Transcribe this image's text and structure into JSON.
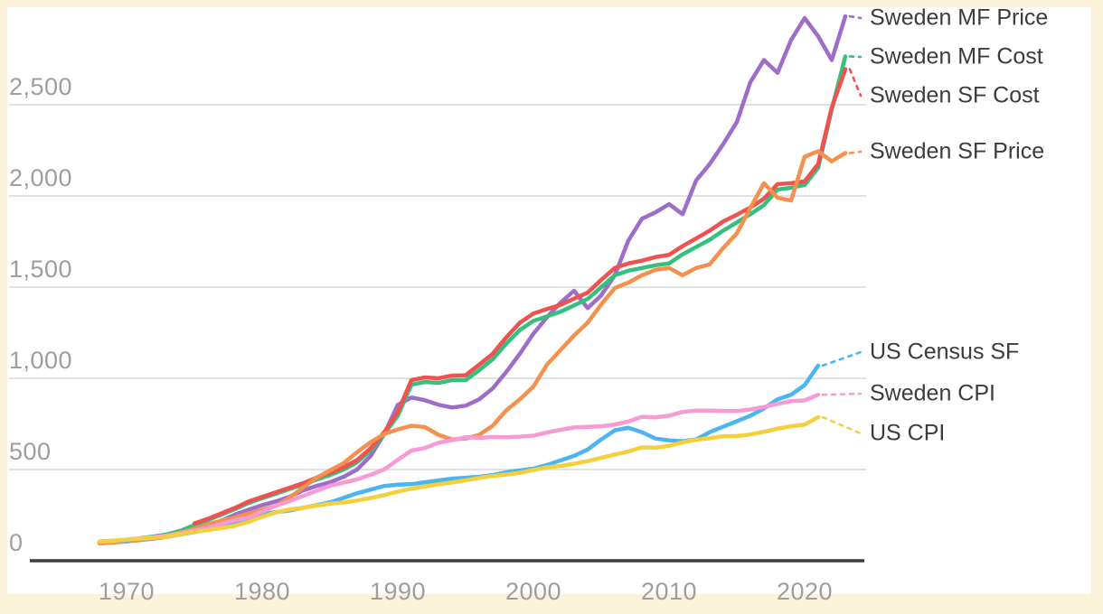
{
  "palette": {
    "page_background": "#FAF3D9",
    "plot_background": "#FFFFFF",
    "gridline": "#E1E1E1",
    "axis_line": "#3E3E3E",
    "tick_text": "#9E9E9E",
    "label_text": "#3C3C3C"
  },
  "chart_data": {
    "type": "line",
    "title": "",
    "grid": true,
    "legend_position": "right of line ends, connected by dashed leader lines",
    "x_axis": {
      "ticks": [
        "1970",
        "1980",
        "1990",
        "2000",
        "2010",
        "2020"
      ],
      "tick_values": [
        1970,
        1980,
        1990,
        2000,
        2010,
        2020
      ],
      "range": [
        1963,
        2025
      ]
    },
    "y_axis": {
      "ticks": [
        "0",
        "500",
        "1,000",
        "1,500",
        "2,000",
        "2,500"
      ],
      "tick_values": [
        0,
        500,
        1000,
        1500,
        2000,
        2500
      ],
      "range": [
        0,
        3100
      ]
    },
    "series": [
      {
        "name": "Sweden MF Price",
        "color": "#9E6DC8",
        "start_year": 1968,
        "end_year": 2023,
        "values": [
          95,
          98,
          102,
          108,
          116,
          126,
          140,
          158,
          185,
          215,
          248,
          275,
          300,
          320,
          345,
          380,
          405,
          425,
          455,
          495,
          570,
          690,
          850,
          890,
          875,
          850,
          835,
          845,
          880,
          940,
          1030,
          1130,
          1240,
          1330,
          1410,
          1475,
          1380,
          1450,
          1560,
          1750,
          1870,
          1905,
          1950,
          1895,
          2080,
          2170,
          2280,
          2400,
          2620,
          2740,
          2670,
          2850,
          2970,
          2870,
          2740,
          2980
        ]
      },
      {
        "name": "Sweden MF Cost",
        "color": "#35C07E",
        "start_year": 1968,
        "end_year": 2023,
        "values": [
          95,
          100,
          108,
          118,
          128,
          140,
          160,
          190,
          218,
          248,
          278,
          312,
          338,
          362,
          388,
          412,
          440,
          465,
          495,
          535,
          600,
          690,
          790,
          960,
          975,
          970,
          985,
          985,
          1040,
          1100,
          1185,
          1260,
          1310,
          1335,
          1360,
          1395,
          1430,
          1495,
          1560,
          1585,
          1600,
          1615,
          1625,
          1675,
          1715,
          1755,
          1805,
          1850,
          1895,
          1945,
          2030,
          2040,
          2055,
          2150,
          2470,
          2760
        ]
      },
      {
        "name": "Sweden SF Cost",
        "color": "#EF5350",
        "start_year": 1975,
        "end_year": 2023,
        "values": [
          200,
          225,
          255,
          285,
          320,
          345,
          370,
          395,
          420,
          450,
          477,
          507,
          547,
          612,
          700,
          810,
          985,
          1000,
          995,
          1010,
          1012,
          1070,
          1130,
          1220,
          1300,
          1350,
          1375,
          1398,
          1432,
          1465,
          1535,
          1600,
          1625,
          1640,
          1660,
          1672,
          1720,
          1762,
          1805,
          1855,
          1892,
          1932,
          1980,
          2060,
          2065,
          2075,
          2170,
          2480,
          2690
        ]
      },
      {
        "name": "Sweden SF Price",
        "color": "#F5914E",
        "start_year": 1968,
        "end_year": 2023,
        "values": [
          90,
          95,
          100,
          108,
          118,
          132,
          150,
          170,
          195,
          215,
          232,
          255,
          275,
          295,
          340,
          395,
          450,
          490,
          530,
          590,
          645,
          690,
          715,
          735,
          728,
          685,
          660,
          665,
          685,
          735,
          820,
          880,
          950,
          1070,
          1150,
          1230,
          1300,
          1400,
          1490,
          1520,
          1560,
          1590,
          1600,
          1560,
          1600,
          1620,
          1710,
          1790,
          1930,
          2065,
          1985,
          1970,
          2210,
          2240,
          2185,
          2230
        ]
      },
      {
        "name": "US Census SF",
        "color": "#4CB4F0",
        "start_year": 1968,
        "end_year": 2021,
        "values": [
          100,
          103,
          106,
          113,
          120,
          130,
          140,
          152,
          165,
          186,
          208,
          230,
          250,
          262,
          270,
          285,
          300,
          315,
          340,
          365,
          385,
          405,
          412,
          415,
          425,
          435,
          445,
          450,
          455,
          465,
          480,
          490,
          500,
          520,
          545,
          570,
          605,
          660,
          710,
          724,
          700,
          665,
          655,
          650,
          660,
          700,
          730,
          760,
          790,
          830,
          880,
          905,
          958,
          1065
        ]
      },
      {
        "name": "Sweden CPI",
        "color": "#F79BD6",
        "start_year": 1968,
        "end_year": 2021,
        "values": [
          100,
          103,
          110,
          118,
          125,
          133,
          146,
          161,
          177,
          197,
          217,
          232,
          264,
          296,
          321,
          350,
          378,
          406,
          423,
          441,
          466,
          496,
          548,
          599,
          613,
          642,
          656,
          672,
          669,
          673,
          672,
          675,
          681,
          698,
          713,
          726,
          729,
          732,
          742,
          758,
          784,
          781,
          790,
          811,
          818,
          818,
          816,
          816,
          824,
          838,
          855,
          870,
          874,
          905
        ]
      },
      {
        "name": "US CPI",
        "color": "#F5D03D",
        "start_year": 1968,
        "end_year": 2021,
        "values": [
          100,
          105,
          111,
          116,
          120,
          127,
          141,
          154,
          163,
          174,
          187,
          208,
          236,
          260,
          276,
          285,
          297,
          308,
          314,
          325,
          339,
          355,
          374,
          390,
          402,
          414,
          424,
          436,
          449,
          460,
          467,
          477,
          493,
          507,
          515,
          527,
          541,
          559,
          577,
          594,
          617,
          615,
          625,
          644,
          658,
          667,
          678,
          679,
          687,
          702,
          719,
          732,
          741,
          782
        ]
      }
    ]
  }
}
